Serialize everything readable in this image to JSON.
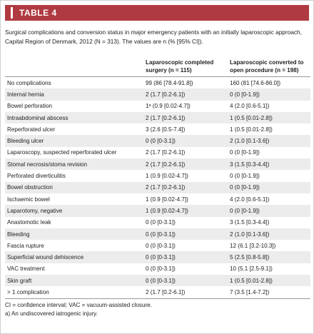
{
  "header": {
    "title": "TABLE 4"
  },
  "caption": "Surgical complications and conversion status in major emergency patients with an initially laparoscopic approach, Capital Region of Denmark, 2012 (N = 313). The values are n (% [95% CI]).",
  "table": {
    "columns": [
      "",
      "Laparoscopic completed surgery (n = 115)",
      "Laparoscopic converted to open procedure (n = 198)"
    ],
    "rows": [
      [
        "No complications",
        "99 (86 [78.4-91.8])",
        "160 (81 [74.6-86.0])"
      ],
      [
        "Internal hernia",
        "2 (1.7 [0.2-6.1])",
        "0 (0 [0-1.9])"
      ],
      [
        "Bowel perforation",
        "1ᵃ (0.9 [0.02-4.7])",
        "4 (2.0 [0.6-5.1])"
      ],
      [
        "Intraabdominal abscess",
        "2 (1.7 [0.2-6.1])",
        "1 (0.5 [0.01-2.8])"
      ],
      [
        "Reperforated ulcer",
        "3 (2.6 [0.5-7.4])",
        "1 (0.5 [0.01-2.8])"
      ],
      [
        "Bleeding ulcer",
        "0 (0 [0-3.1])",
        "2 (1.0 [0.1-3.6])"
      ],
      [
        "Laparoscopy, suspected reperforated ulcer",
        "2 (1.7 [0.2-6.1])",
        "0 (0 [0-1.9])"
      ],
      [
        "Stomal necrosis/stoma revision",
        "2 (1.7 [0.2-6.1])",
        "3 (1.5 [0.3-4.4])"
      ],
      [
        "Perforated diverticulitis",
        "1 (0.9 [0.02-4.7])",
        "0 (0 [0-1.9])"
      ],
      [
        "Bowel obstruction",
        "2 (1.7 [0.2-6.1])",
        "0 (0 [0-1.9])"
      ],
      [
        "Ischaemic bowel",
        "1 (0.9 [0.02-4.7])",
        "4 (2.0 [0.6-5.1])"
      ],
      [
        "Laparotomy, negative",
        "1 (0.9 [0.02-4.7])",
        "0 (0 [0-1.9])"
      ],
      [
        "Anastomotic leak",
        "0 (0 [0-3.1])",
        "3 (1.5 [0.3-4.4])"
      ],
      [
        "Bleeding",
        "0 (0 [0-3.1])",
        "2 (1.0 [0.1-3.6])"
      ],
      [
        "Fascia rupture",
        "0 (0 [0-3.1])",
        "12 (6.1 [3.2-10.3])"
      ],
      [
        "Superficial wound dehiscence",
        "0 (0 [0-3.1])",
        "5 (2.5 [0.8-5.8])"
      ],
      [
        "VAC treatment",
        "0 (0 [0-3.1])",
        "10 (5.1 [2.5-9.1])"
      ],
      [
        "Skin graft",
        "0 (0 [0-3.1])",
        "1 (0.5 [0.01-2.8])"
      ],
      [
        "> 1 complication",
        "2 (1.7 [0.2-6.1])",
        "7 (3.5 [1.4-7.2])"
      ]
    ]
  },
  "notes": [
    "CI = confidence interval; VAC = vacuum-assisted closure.",
    "a) An undiscovered iatrogenic injury."
  ]
}
